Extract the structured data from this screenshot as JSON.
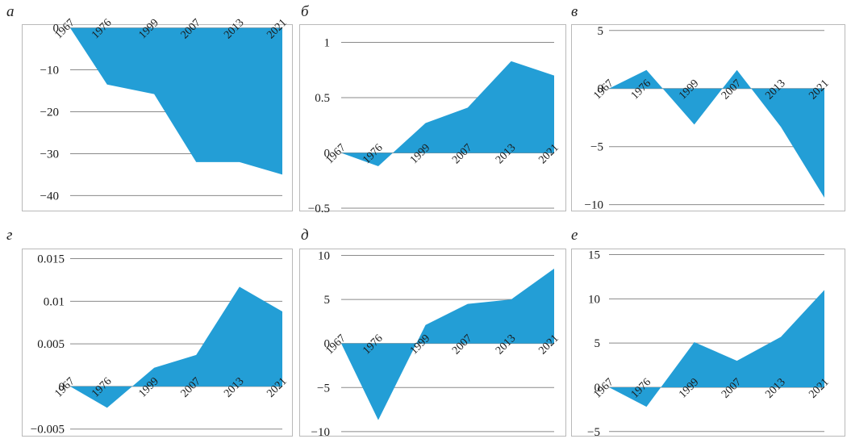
{
  "colors": {
    "area_fill": "#239ed6",
    "grid": "#8a8a8a",
    "frame": "#b9b9b9"
  },
  "chart_data": [
    {
      "type": "area",
      "label": "а",
      "x": [
        "1967",
        "1976",
        "1999",
        "2007",
        "2013",
        "2021"
      ],
      "values": [
        0,
        -13.5,
        -15.8,
        -32,
        -32,
        -35
      ],
      "yticks": [
        0,
        -10,
        -20,
        -30,
        -40
      ],
      "ytick_labels": [
        "0",
        "−10",
        "−20",
        "−30",
        "−40"
      ],
      "ylim": [
        -43,
        0.5
      ],
      "grid": true
    },
    {
      "type": "area",
      "label": "б",
      "x": [
        "1967",
        "1976",
        "1999",
        "2007",
        "2013",
        "2021"
      ],
      "values": [
        0,
        -0.12,
        0.27,
        0.41,
        0.83,
        0.7
      ],
      "yticks": [
        1,
        0.5,
        0,
        -0.5
      ],
      "ytick_labels": [
        "1",
        "0.5",
        "0",
        "−0.5"
      ],
      "ylim": [
        -0.5,
        1.15
      ],
      "grid": true
    },
    {
      "type": "area",
      "label": "в",
      "x": [
        "1967",
        "1976",
        "1999",
        "2007",
        "2013",
        "2021"
      ],
      "values": [
        0,
        1.6,
        -3.1,
        1.6,
        -3.3,
        -9.4
      ],
      "yticks": [
        5,
        0,
        -5,
        -10
      ],
      "ytick_labels": [
        "5",
        "0",
        "−5",
        "−10"
      ],
      "ylim": [
        -10.3,
        5.4
      ],
      "grid": true
    },
    {
      "type": "area",
      "label": "г",
      "x": [
        "1967",
        "1976",
        "1999",
        "2007",
        "2013",
        "2021"
      ],
      "values": [
        0,
        -0.0025,
        0.0022,
        0.0037,
        0.0117,
        0.0088
      ],
      "yticks": [
        0.015,
        0.01,
        0.005,
        0,
        -0.005
      ],
      "ytick_labels": [
        "0.015",
        "0.01",
        "0.005",
        "0",
        "−0.005"
      ],
      "ylim": [
        -0.0055,
        0.016
      ],
      "grid": true
    },
    {
      "type": "area",
      "label": "д",
      "x": [
        "1967",
        "1976",
        "1999",
        "2007",
        "2013",
        "2021"
      ],
      "values": [
        0,
        -8.7,
        2.1,
        4.5,
        5,
        8.5
      ],
      "yticks": [
        10,
        5,
        0,
        -5,
        -10
      ],
      "ytick_labels": [
        "10",
        "5",
        "0",
        "−5",
        "−10"
      ],
      "ylim": [
        -10.2,
        10.6
      ],
      "grid": true
    },
    {
      "type": "area",
      "label": "е",
      "x": [
        "1967",
        "1976",
        "1999",
        "2007",
        "2013",
        "2021"
      ],
      "values": [
        0,
        -2.2,
        5.1,
        3,
        5.7,
        11
      ],
      "yticks": [
        15,
        10,
        5,
        0,
        -5
      ],
      "ytick_labels": [
        "15",
        "10",
        "5",
        "0",
        "−5"
      ],
      "ylim": [
        -5.2,
        15.5
      ],
      "grid": true
    }
  ]
}
